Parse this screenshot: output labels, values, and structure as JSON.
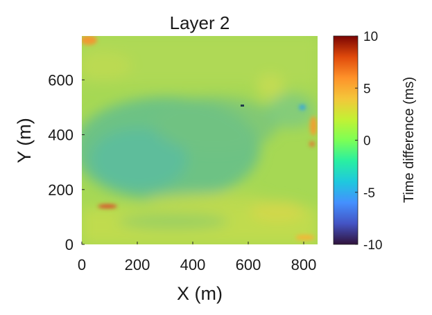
{
  "chart_data": {
    "type": "heatmap",
    "title": "Layer 2",
    "xlabel": "X (m)",
    "ylabel": "Y (m)",
    "xlim": [
      0,
      850
    ],
    "ylim": [
      0,
      760
    ],
    "x_ticks": [
      0,
      200,
      400,
      600,
      800
    ],
    "x_tick_labels": [
      "0",
      "200",
      "400",
      "600",
      "800"
    ],
    "y_ticks": [
      0,
      200,
      400,
      600
    ],
    "y_tick_labels": [
      "0",
      "200",
      "400",
      "600"
    ],
    "colorbar": {
      "label": "Time difference (ms)",
      "range": [
        -10,
        10
      ],
      "ticks": [
        10,
        5,
        0,
        -5,
        -10
      ],
      "tick_labels": [
        "10",
        "5",
        "0",
        "-5",
        "-10"
      ],
      "colormap": "turbo"
    },
    "grid": false,
    "value_summary": {
      "typical_range_ms": [
        -4,
        3
      ],
      "low_zone": {
        "x_range": [
          0,
          600
        ],
        "y_range": [
          250,
          560
        ],
        "value_ms": -3.5
      },
      "high_spots": [
        {
          "x": 20,
          "y": 745,
          "value_ms": 7
        },
        {
          "x": 100,
          "y": 140,
          "value_ms": 8
        },
        {
          "x": 845,
          "y": 450,
          "value_ms": 6
        }
      ]
    }
  }
}
